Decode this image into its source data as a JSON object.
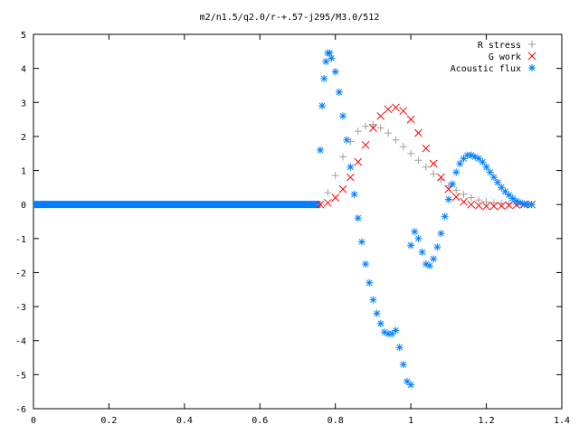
{
  "chart_data": {
    "type": "scatter",
    "title": "m2/n1.5/q2.0/r-+.57-j295/M3.0/512",
    "xlabel": "",
    "ylabel": "",
    "xlim": [
      0,
      1.4
    ],
    "ylim": [
      -6,
      5
    ],
    "x_ticks": [
      "0",
      "0.2",
      "0.4",
      "0.6",
      "0.8",
      "1",
      "1.2",
      "1.4"
    ],
    "y_ticks": [
      "5",
      "4",
      "3",
      "2",
      "1",
      "0",
      "-1",
      "-2",
      "-3",
      "-4",
      "-5",
      "-6"
    ],
    "grid": false,
    "legend_position": "top-right",
    "series": [
      {
        "name": "R stress",
        "marker": "plus",
        "color": "#a0a0a0",
        "x": [
          0.76,
          0.78,
          0.8,
          0.82,
          0.84,
          0.86,
          0.88,
          0.9,
          0.92,
          0.94,
          0.96,
          0.98,
          1.0,
          1.02,
          1.04,
          1.06,
          1.08,
          1.1,
          1.12,
          1.14,
          1.16,
          1.18,
          1.2,
          1.22,
          1.24,
          1.26,
          1.28,
          1.3,
          1.32
        ],
        "y": [
          0.0,
          0.35,
          0.85,
          1.4,
          1.85,
          2.15,
          2.3,
          2.35,
          2.25,
          2.1,
          1.9,
          1.7,
          1.5,
          1.3,
          1.1,
          0.9,
          0.72,
          0.55,
          0.42,
          0.3,
          0.2,
          0.13,
          0.08,
          0.05,
          0.03,
          0.02,
          0.01,
          0.0,
          0.0
        ]
      },
      {
        "name": "G work",
        "marker": "cross",
        "color": "#ff0000",
        "x": [
          0.76,
          0.78,
          0.8,
          0.82,
          0.84,
          0.86,
          0.88,
          0.9,
          0.92,
          0.94,
          0.96,
          0.98,
          1.0,
          1.02,
          1.04,
          1.06,
          1.08,
          1.1,
          1.12,
          1.14,
          1.16,
          1.18,
          1.2,
          1.22,
          1.24,
          1.26,
          1.28,
          1.3,
          1.32
        ],
        "y": [
          0.0,
          0.05,
          0.2,
          0.45,
          0.8,
          1.25,
          1.75,
          2.25,
          2.6,
          2.8,
          2.85,
          2.75,
          2.5,
          2.1,
          1.65,
          1.2,
          0.8,
          0.45,
          0.22,
          0.08,
          0.0,
          -0.03,
          -0.05,
          -0.05,
          -0.04,
          -0.02,
          -0.01,
          0.0,
          0.0
        ]
      },
      {
        "name": "Acoustic flux",
        "marker": "star",
        "color": "#0080ff",
        "x": [
          0.76,
          0.765,
          0.77,
          0.775,
          0.78,
          0.785,
          0.79,
          0.8,
          0.81,
          0.82,
          0.83,
          0.84,
          0.85,
          0.86,
          0.87,
          0.88,
          0.89,
          0.9,
          0.91,
          0.92,
          0.93,
          0.94,
          0.95,
          0.96,
          0.97,
          0.98,
          0.99,
          1.0,
          1.0,
          1.01,
          1.02,
          1.03,
          1.04,
          1.05,
          1.06,
          1.07,
          1.08,
          1.09,
          1.1,
          1.11,
          1.12,
          1.13,
          1.14,
          1.15,
          1.16,
          1.17,
          1.18,
          1.19,
          1.2,
          1.21,
          1.22,
          1.23,
          1.24,
          1.25,
          1.26,
          1.27,
          1.28,
          1.29,
          1.3,
          1.31,
          1.32
        ],
        "y": [
          1.6,
          2.9,
          3.7,
          4.2,
          4.45,
          4.45,
          4.3,
          3.9,
          3.3,
          2.6,
          1.9,
          1.1,
          0.3,
          -0.4,
          -1.1,
          -1.75,
          -2.3,
          -2.8,
          -3.2,
          -3.5,
          -3.75,
          -3.8,
          -3.8,
          -3.7,
          -4.2,
          -4.7,
          -5.2,
          -5.3,
          -1.2,
          -0.8,
          -1.0,
          -1.4,
          -1.75,
          -1.8,
          -1.6,
          -1.25,
          -0.85,
          -0.35,
          0.15,
          0.6,
          0.95,
          1.2,
          1.35,
          1.45,
          1.45,
          1.4,
          1.35,
          1.25,
          1.1,
          0.95,
          0.8,
          0.65,
          0.5,
          0.38,
          0.28,
          0.18,
          0.1,
          0.05,
          0.02,
          0.0,
          0.0
        ]
      }
    ],
    "flat_segment": {
      "series": "Acoustic flux",
      "x": [
        0,
        0.76
      ],
      "y": 0
    }
  }
}
